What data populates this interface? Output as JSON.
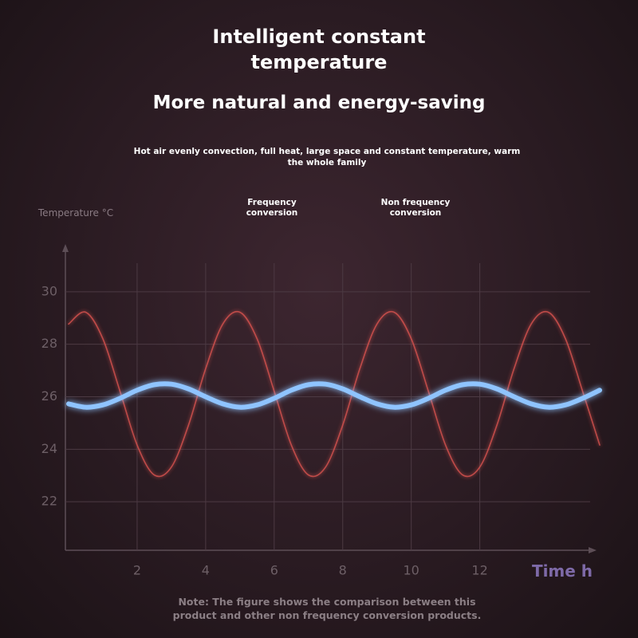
{
  "chart_data": {
    "type": "line",
    "title": "Intelligent constant temperature",
    "subtitle": "More natural and energy-saving",
    "description": "Hot air evenly convection, full heat, large space and constant temperature, warm the whole family",
    "y_label": "Temperature °C",
    "x_label": "Time h",
    "note": "Note: The figure shows the comparison between this product and other non frequency conversion products.",
    "x": [
      0,
      0.5,
      1,
      1.5,
      2,
      2.5,
      3,
      3.5,
      4,
      4.5,
      5,
      5.5,
      6,
      6.5,
      7,
      7.5,
      8,
      8.5,
      9,
      9.5,
      10,
      10.5,
      11,
      11.5,
      12,
      12.5,
      13,
      13.5,
      14,
      14.5,
      15,
      15.5
    ],
    "series": [
      {
        "name": "Frequency conversion",
        "color": "#8fc4ff",
        "values": [
          25.73,
          25.6,
          25.69,
          25.94,
          26.25,
          26.46,
          26.48,
          26.3,
          26.0,
          25.73,
          25.6,
          25.69,
          25.94,
          26.25,
          26.46,
          26.48,
          26.3,
          26.0,
          25.73,
          25.6,
          25.69,
          25.94,
          26.25,
          26.46,
          26.48,
          26.3,
          26.0,
          25.73,
          25.6,
          25.69,
          25.94,
          26.25
        ]
      },
      {
        "name": "Non frequency conversion",
        "color": "#d9534f",
        "values": [
          28.77,
          29.22,
          28.21,
          26.21,
          24.16,
          23.02,
          23.32,
          24.92,
          27.07,
          28.77,
          29.22,
          28.21,
          26.21,
          24.16,
          23.02,
          23.32,
          24.92,
          27.07,
          28.77,
          29.22,
          28.21,
          26.21,
          24.16,
          23.02,
          23.32,
          24.92,
          27.07,
          28.77,
          29.22,
          28.21,
          26.21,
          24.16
        ]
      }
    ],
    "xlim": [
      0,
      15.5
    ],
    "ylim": [
      20,
      32
    ],
    "xticks": [
      2,
      4,
      6,
      8,
      10,
      12
    ],
    "yticks": [
      22,
      24,
      26,
      28,
      30
    ],
    "grid": true,
    "legend": "top"
  }
}
